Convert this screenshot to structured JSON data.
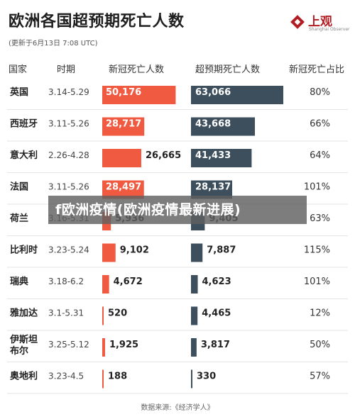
{
  "title": "欧洲各国超预期死亡人数",
  "subtitle": "(更新于6月13日 7:08 UTC)",
  "logo": {
    "text": "上观",
    "sub": "Shanghai Observer"
  },
  "headers": [
    "国家",
    "时期",
    "新冠死亡人数",
    "超预期死亡人数",
    "新冠死亡占比"
  ],
  "source": "数据来源:《经济学人》",
  "overlay": "f欧洲疫情(欧洲疫情最新进展)",
  "colors": {
    "covid": "#f05a40",
    "excess": "#3d4f5d",
    "divider": "#e3e3e3"
  },
  "chart_data": {
    "type": "bar",
    "categories": [
      "英国",
      "西班牙",
      "意大利",
      "法国",
      "荷兰",
      "比利时",
      "瑞典",
      "雅加达",
      "伊斯坦布尔",
      "奥地利"
    ],
    "periods": [
      "3.14-5.29",
      "3.11-5.26",
      "2.26-4.28",
      "3.11-5.26",
      "3.16-5.31",
      "3.23-5.24",
      "3.18-6.2",
      "3.1-5.31",
      "3.25-5.12",
      "3.23-4.5"
    ],
    "series": [
      {
        "name": "新冠死亡人数",
        "values": [
          50176,
          28717,
          26665,
          28497,
          5936,
          9102,
          4672,
          520,
          1925,
          188
        ]
      },
      {
        "name": "超预期死亡人数",
        "values": [
          63066,
          43668,
          41433,
          28137,
          9405,
          7887,
          4623,
          4465,
          3817,
          330
        ]
      }
    ],
    "labels_covid": [
      "50,176",
      "28,717",
      "26,665",
      "28,497",
      "5,936",
      "9,102",
      "4,672",
      "520",
      "1,925",
      "188"
    ],
    "labels_excess": [
      "63,066",
      "43,668",
      "41,433",
      "28,137",
      "9,405",
      "7,887",
      "4,623",
      "4,465",
      "3,817",
      "330"
    ],
    "share": [
      "80%",
      "66%",
      "64%",
      "101%",
      "63%",
      "115%",
      "101%",
      "12%",
      "50%",
      "57%"
    ]
  }
}
